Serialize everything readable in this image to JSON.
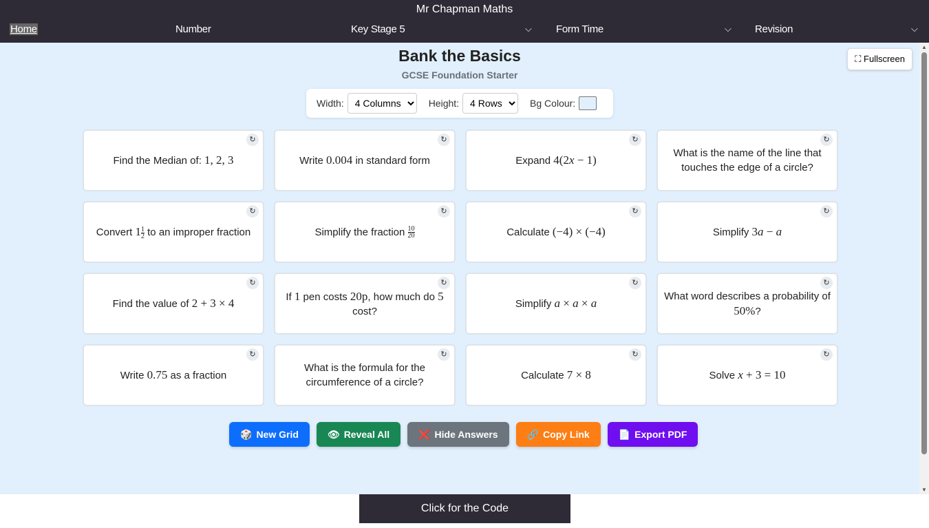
{
  "site_title": "Mr Chapman Maths",
  "nav": [
    {
      "label": "Home"
    },
    {
      "label": "Number"
    },
    {
      "label": "Key Stage 5",
      "dropdown": true
    },
    {
      "label": "Form Time",
      "dropdown": true
    },
    {
      "label": "Revision",
      "dropdown": true
    }
  ],
  "title": "Bank the Basics",
  "subtitle": "GCSE Foundation Starter",
  "fullscreen_label": "Fullscreen",
  "controls": {
    "width_label": "Width:",
    "width_value": "4 Columns",
    "height_label": "Height:",
    "height_value": "4 Rows",
    "bg_label": "Bg Colour:",
    "bg_colour": "#e1f0fc"
  },
  "cards": [
    [
      {
        "t": "Find the Median of: "
      },
      {
        "n": "1, 2, 3"
      }
    ],
    [
      {
        "t": "Write "
      },
      {
        "n": "0.004"
      },
      {
        "t": " in standard form"
      }
    ],
    [
      {
        "t": "Expand "
      },
      {
        "n": "4(2"
      },
      {
        "v": "x"
      },
      {
        "n": " − 1)"
      }
    ],
    [
      {
        "t": "What is the name of the line that touches the edge of a circle?"
      }
    ],
    [
      {
        "t": "Convert "
      },
      {
        "n": "1"
      },
      {
        "f": [
          "1",
          "2"
        ]
      },
      {
        "t": " to an improper fraction"
      }
    ],
    [
      {
        "t": "Simplify the fraction "
      },
      {
        "f": [
          "10",
          "20"
        ]
      }
    ],
    [
      {
        "t": "Calculate "
      },
      {
        "n": "(−4) × (−4)"
      }
    ],
    [
      {
        "t": "Simplify "
      },
      {
        "n": "3"
      },
      {
        "v": "a"
      },
      {
        "n": " − "
      },
      {
        "v": "a"
      }
    ],
    [
      {
        "t": "Find the value of "
      },
      {
        "n": "2 + 3 × 4"
      }
    ],
    [
      {
        "t": "If "
      },
      {
        "n": "1"
      },
      {
        "t": " pen costs "
      },
      {
        "n": "20p"
      },
      {
        "t": ", how much do "
      },
      {
        "n": "5"
      },
      {
        "t": " cost?"
      }
    ],
    [
      {
        "t": "Simplify "
      },
      {
        "v": "a"
      },
      {
        "n": " × "
      },
      {
        "v": "a"
      },
      {
        "n": " × "
      },
      {
        "v": "a"
      }
    ],
    [
      {
        "t": "What word describes a probability of "
      },
      {
        "n": "50%"
      },
      {
        "t": "?"
      }
    ],
    [
      {
        "t": "Write "
      },
      {
        "n": "0.75"
      },
      {
        "t": " as a fraction"
      }
    ],
    [
      {
        "t": "What is the formula for the circumference of a circle?"
      }
    ],
    [
      {
        "t": "Calculate "
      },
      {
        "n": "7 × 8"
      }
    ],
    [
      {
        "t": "Solve "
      },
      {
        "v": "x"
      },
      {
        "n": " + 3 = 10"
      }
    ]
  ],
  "refresh_icon": "↻",
  "buttons": [
    {
      "label": "New Grid",
      "icon": "🎲",
      "color": "#0d6efd",
      "name": "new-grid"
    },
    {
      "label": "Reveal All",
      "icon": "👁",
      "color": "#198754",
      "name": "reveal-all"
    },
    {
      "label": "Hide Answers",
      "icon": "❌",
      "color": "#6c757d",
      "name": "hide-answers"
    },
    {
      "label": "Copy Link",
      "icon": "🔗",
      "color": "#fd7e14",
      "name": "copy-link"
    },
    {
      "label": "Export PDF",
      "icon": "📄",
      "color": "#6f0ff0",
      "name": "export-pdf"
    }
  ],
  "footer_label": "Click for the Code"
}
